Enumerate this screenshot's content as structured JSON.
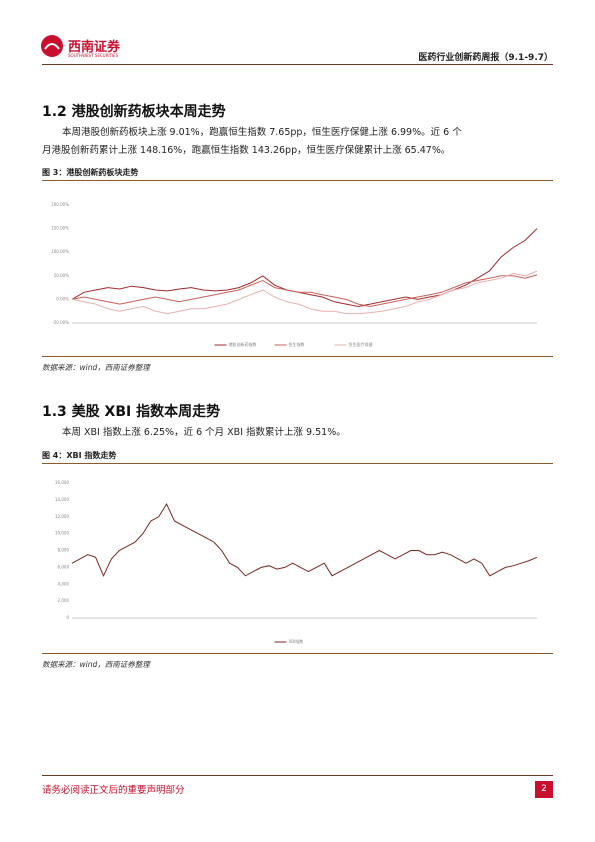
{
  "header": {
    "logo": "西南证券",
    "logo_sub": "SOUTHWEST SECURITIES",
    "report_title": "医药行业创新药周报（9.1-9.7）"
  },
  "sections": [
    {
      "heading": "1.2 港股创新药板块本周走势",
      "paragraph": "本周港股创新药板块上涨 9.01%，跑赢恒生指数 7.65pp，恒生医疗保健上涨 6.99%。近 6 个月港股创新药累计上涨 148.16%，跑赢恒生指数 143.26pp，恒生医疗保健累计上涨 65.47%。",
      "caption": "图 3：港股创新药板块走势",
      "source": "数据来源：wind，西南证券整理"
    },
    {
      "heading": "1.3 美股 XBI 指数本周走势",
      "paragraph": "本周 XBI 指数上涨 6.25%，近 6 个月 XBI 指数累计上涨 9.51%。",
      "caption": "图 4：XBI 指数走势",
      "source": "数据来源：wind，西南证券整理"
    }
  ],
  "chart_data": [
    {
      "type": "line",
      "ylim": [
        -50,
        200
      ],
      "yticks": [
        {
          "value": -50,
          "label": "-50.00%"
        },
        {
          "value": 0,
          "label": "0.00%"
        },
        {
          "value": 50,
          "label": "50.00%"
        },
        {
          "value": 100,
          "label": "100.00%"
        },
        {
          "value": 150,
          "label": "150.00%"
        },
        {
          "value": 200,
          "label": "200.00%"
        }
      ],
      "grid": false,
      "series": [
        {
          "name": "港股创新药指数",
          "color": "#a52a2a",
          "values": [
            0,
            15,
            20,
            25,
            22,
            28,
            25,
            20,
            18,
            22,
            25,
            20,
            18,
            20,
            25,
            35,
            50,
            30,
            20,
            15,
            10,
            5,
            -5,
            -10,
            -15,
            -10,
            -5,
            0,
            5,
            0,
            5,
            10,
            20,
            30,
            45,
            60,
            90,
            110,
            125,
            150
          ]
        },
        {
          "name": "恒生指数",
          "color": "#c9605a",
          "values": [
            0,
            5,
            0,
            -5,
            -10,
            -5,
            0,
            5,
            0,
            -5,
            0,
            5,
            10,
            15,
            20,
            30,
            40,
            25,
            20,
            15,
            15,
            10,
            5,
            0,
            -10,
            -15,
            -10,
            -5,
            0,
            5,
            10,
            15,
            25,
            35,
            40,
            45,
            50,
            50,
            45,
            52
          ]
        },
        {
          "name": "恒生医疗保健",
          "color": "#e8b0ae",
          "values": [
            0,
            -5,
            -10,
            -20,
            -25,
            -20,
            -15,
            -25,
            -30,
            -25,
            -20,
            -20,
            -15,
            -10,
            0,
            10,
            20,
            5,
            -5,
            -10,
            -20,
            -25,
            -25,
            -30,
            -30,
            -28,
            -25,
            -20,
            -15,
            -5,
            0,
            10,
            20,
            25,
            35,
            40,
            45,
            55,
            50,
            60
          ]
        }
      ]
    },
    {
      "type": "line",
      "ylim": [
        0,
        16000
      ],
      "yticks": [
        0,
        {
          "value": 2000,
          "label": "2,000"
        },
        {
          "value": 4000,
          "label": "4,000"
        },
        {
          "value": 6000,
          "label": "6,000"
        },
        {
          "value": 8000,
          "label": "8,000"
        },
        {
          "value": 10000,
          "label": "10,000"
        },
        {
          "value": 12000,
          "label": "12,000"
        },
        {
          "value": 14000,
          "label": "14,000"
        },
        {
          "value": 16000,
          "label": "16,000"
        }
      ],
      "grid": false,
      "series": [
        {
          "name": "XBI指数",
          "color": "#7a2a22",
          "values": [
            6500,
            7000,
            7500,
            7200,
            5000,
            7000,
            8000,
            8500,
            9000,
            10000,
            11500,
            12000,
            13500,
            11500,
            11000,
            10500,
            10000,
            9500,
            9000,
            8000,
            6500,
            6000,
            5000,
            5500,
            6000,
            6200,
            5800,
            6000,
            6500,
            6000,
            5500,
            6000,
            6500,
            5000,
            5500,
            6000,
            6500,
            7000,
            7500,
            8000,
            7500,
            7000,
            7500,
            8000,
            8000,
            7500,
            7500,
            7800,
            7500,
            7000,
            6500,
            7000,
            6500,
            5000,
            5500,
            6000,
            6200,
            6500,
            6800,
            7200
          ]
        }
      ]
    }
  ],
  "footer": {
    "notice": "请务必阅读正文后的重要声明部分",
    "page": "2"
  }
}
